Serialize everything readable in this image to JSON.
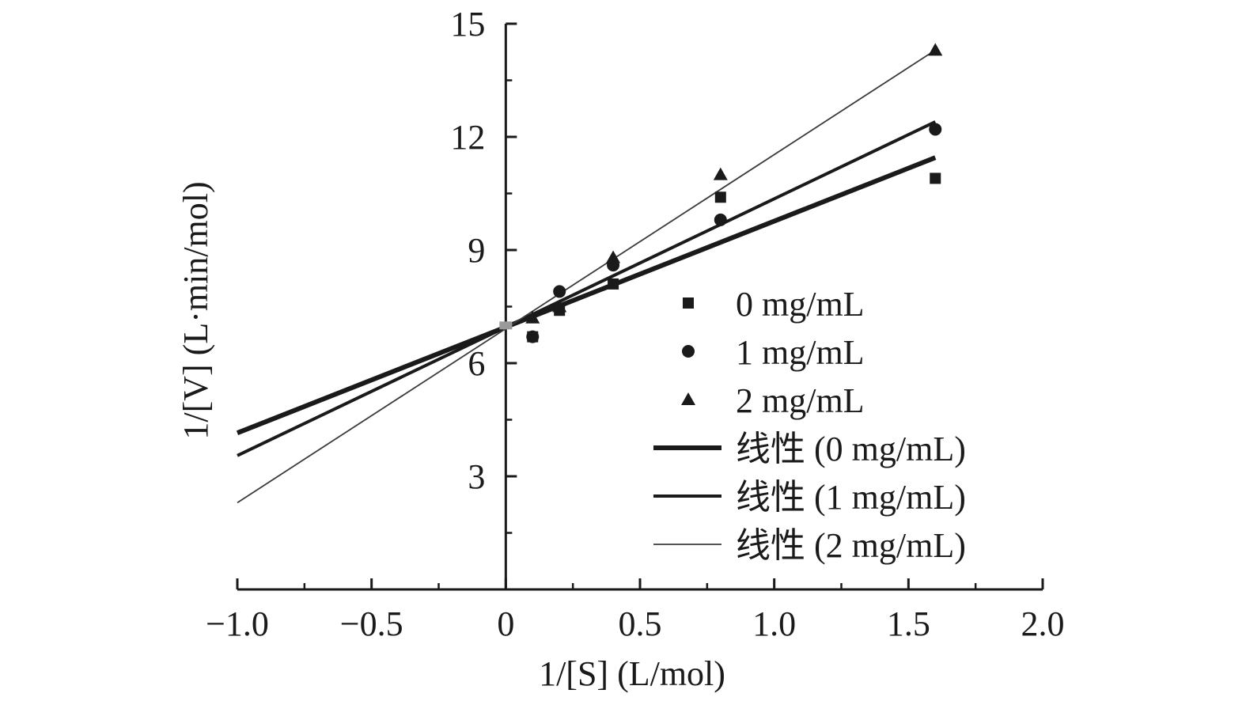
{
  "chart_data": {
    "type": "line",
    "title": "",
    "xlabel": "1/[S] (L/mol)",
    "ylabel": "1/[V] (L·min/mol)",
    "xlim": [
      -1.0,
      2.0
    ],
    "ylim": [
      0,
      15
    ],
    "x_ticks": [
      -1.0,
      -0.5,
      0,
      0.5,
      1.0,
      1.5,
      2.0
    ],
    "x_tick_labels": [
      "−1.0",
      "−0.5",
      "0",
      "0.5",
      "1.0",
      "1.5",
      "2.0"
    ],
    "y_ticks": [
      3,
      6,
      9,
      12,
      15
    ],
    "y_tick_labels": [
      "3",
      "6",
      "9",
      "12",
      "15"
    ],
    "grid": false,
    "legend_position": "right",
    "series": [
      {
        "name": "0 mg/mL",
        "kind": "scatter",
        "marker": "square",
        "x": [
          0.1,
          0.2,
          0.4,
          0.8,
          1.6
        ],
        "y": [
          6.7,
          7.4,
          8.1,
          10.4,
          10.9
        ]
      },
      {
        "name": "1 mg/mL",
        "kind": "scatter",
        "marker": "circle",
        "x": [
          0.1,
          0.2,
          0.4,
          0.8,
          1.6
        ],
        "y": [
          6.7,
          7.9,
          8.6,
          9.8,
          12.2
        ]
      },
      {
        "name": "2 mg/mL",
        "kind": "scatter",
        "marker": "triangle",
        "x": [
          0.1,
          0.2,
          0.4,
          0.8,
          1.6
        ],
        "y": [
          7.2,
          7.5,
          8.8,
          11.0,
          14.3
        ]
      },
      {
        "name": "线性 (0 mg/mL)",
        "kind": "line",
        "weight": "thick",
        "x": [
          -1.0,
          1.6
        ],
        "y": [
          4.15,
          11.45
        ]
      },
      {
        "name": "线性 (1 mg/mL)",
        "kind": "line",
        "weight": "medium",
        "x": [
          -1.0,
          1.6
        ],
        "y": [
          3.55,
          12.4
        ]
      },
      {
        "name": "线性 (2 mg/mL)",
        "kind": "line",
        "weight": "thin",
        "x": [
          -1.0,
          1.6
        ],
        "y": [
          2.3,
          14.3
        ]
      }
    ],
    "colors": {
      "ink": "#1a1a1a",
      "thin_line": "#3a3a3a",
      "intercept_marker": "#9a9a9a"
    }
  }
}
